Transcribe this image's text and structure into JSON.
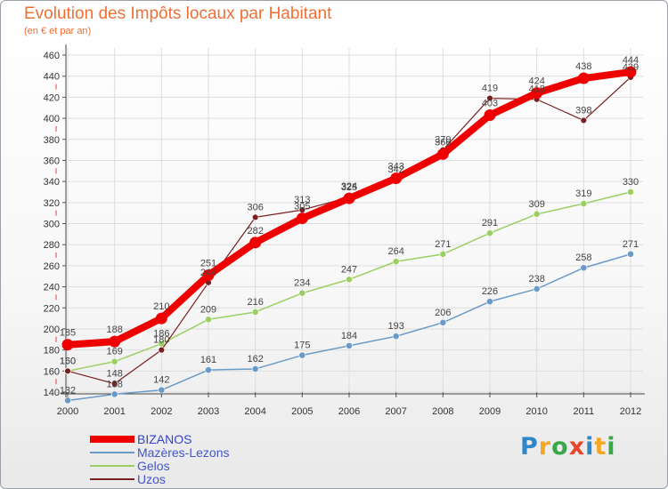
{
  "title": "Evolution des Impôts locaux par Habitant",
  "subtitle": "(en € et par an)",
  "logo": "Proxiti",
  "colors": {
    "bizanos": "#ee0000",
    "mazeres": "#6a9ac8",
    "gelos": "#9ccf62",
    "uzos": "#7a1f1f"
  },
  "chart_data": {
    "type": "line",
    "title": "Evolution des Impôts locaux par Habitant",
    "ylabel": "(en € et par an)",
    "xlabel": "",
    "categories": [
      "2000",
      "2001",
      "2002",
      "2003",
      "2004",
      "2005",
      "2006",
      "2007",
      "2008",
      "2009",
      "2010",
      "2011",
      "2012"
    ],
    "ylim": [
      140,
      460
    ],
    "yticks": [
      140,
      160,
      180,
      200,
      220,
      240,
      260,
      280,
      300,
      320,
      340,
      360,
      380,
      400,
      420,
      440,
      460
    ],
    "grid": true,
    "legend_position": "bottom-left",
    "series": [
      {
        "key": "mazeres",
        "name": "Mazères-Lezons",
        "values": [
          132,
          138,
          142,
          161,
          162,
          175,
          184,
          193,
          206,
          226,
          238,
          258,
          271
        ]
      },
      {
        "key": "gelos",
        "name": "Gelos",
        "values": [
          160,
          169,
          186,
          209,
          216,
          234,
          247,
          264,
          271,
          291,
          309,
          319,
          330
        ]
      },
      {
        "key": "uzos",
        "name": "Uzos",
        "values": [
          160,
          148,
          180,
          244,
          306,
          313,
          325,
          342,
          370,
          419,
          418,
          398,
          439
        ]
      },
      {
        "key": "bizanos",
        "name": "BIZANOS",
        "values": [
          185,
          188,
          210,
          251,
          282,
          305,
          324,
          343,
          366,
          403,
          424,
          438,
          444
        ]
      }
    ]
  }
}
